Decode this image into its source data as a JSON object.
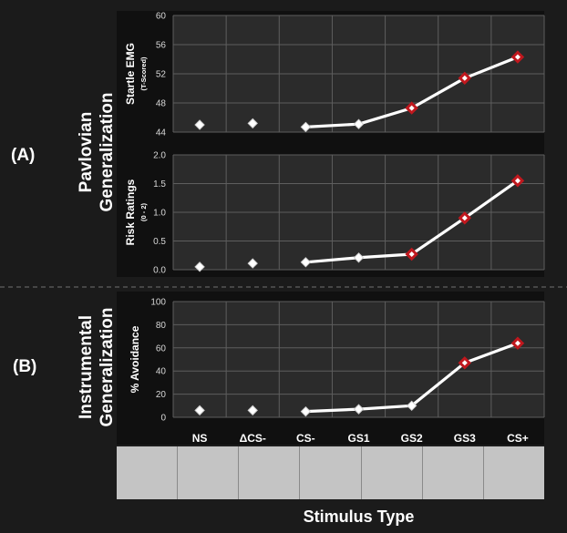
{
  "panel_labels": {
    "a": "(A)",
    "b": "(B)"
  },
  "sections": {
    "pavlovian": [
      "Pavlovian",
      "Generalization"
    ],
    "instrumental": [
      "Instrumental",
      "Generalization"
    ]
  },
  "x_axis_title": "Stimulus Type",
  "stimuli": [
    "",
    "triangle",
    "circle",
    "circle",
    "circle",
    "circle",
    "circle"
  ],
  "stimulus_circle_sizes": [
    0,
    0,
    1,
    2,
    3,
    4,
    5
  ],
  "colors": {
    "background": "#1b1b1b",
    "plot_area": "#2b2b2b",
    "grid": "#5e5e5e",
    "line": "#ffffff",
    "marker_fill": "#ffffff",
    "highlight_marker": "#c0181e",
    "text": "#ffffff",
    "strip": "#c4c4c4"
  },
  "chart_data": [
    {
      "type": "line",
      "categories": [
        "NS",
        "ΔCS-",
        "CS-",
        "GS1",
        "GS2",
        "GS3",
        "CS+"
      ],
      "ylabel": "Startle EMG",
      "ylabel_sub": "(T-Scored)",
      "ylim": [
        44,
        60
      ],
      "yticks": [
        44,
        48,
        52,
        56,
        60
      ],
      "ytick_labels": [
        "44",
        "48",
        "52",
        "56",
        "60"
      ],
      "values": [
        45.0,
        45.2,
        44.7,
        45.1,
        47.3,
        51.4,
        54.3
      ],
      "connected_from": 2,
      "highlighted_from": 4,
      "grid": true,
      "show_x_labels": false
    },
    {
      "type": "line",
      "categories": [
        "NS",
        "ΔCS-",
        "CS-",
        "GS1",
        "GS2",
        "GS3",
        "CS+"
      ],
      "ylabel": "Risk Ratings",
      "ylabel_sub": "(0 - 2)",
      "ylim": [
        0,
        2
      ],
      "yticks": [
        0,
        0.5,
        1,
        1.5,
        2
      ],
      "ytick_labels": [
        "0.0",
        "0.5",
        "1.0",
        "1.5",
        "2.0"
      ],
      "values": [
        0.05,
        0.11,
        0.13,
        0.21,
        0.27,
        0.9,
        1.55
      ],
      "connected_from": 2,
      "highlighted_from": 4,
      "grid": true,
      "show_x_labels": false
    },
    {
      "type": "line",
      "categories": [
        "NS",
        "ΔCS-",
        "CS-",
        "GS1",
        "GS2",
        "GS3",
        "CS+"
      ],
      "ylabel": "% Avoidance",
      "ylabel_sub": "",
      "ylim": [
        0,
        100
      ],
      "yticks": [
        0,
        20,
        40,
        60,
        80,
        100
      ],
      "ytick_labels": [
        "0",
        "20",
        "40",
        "60",
        "80",
        "100"
      ],
      "values": [
        6,
        6,
        5,
        7,
        10,
        47,
        64
      ],
      "connected_from": 2,
      "highlighted_from": 5,
      "grid": true,
      "show_x_labels": true
    }
  ]
}
